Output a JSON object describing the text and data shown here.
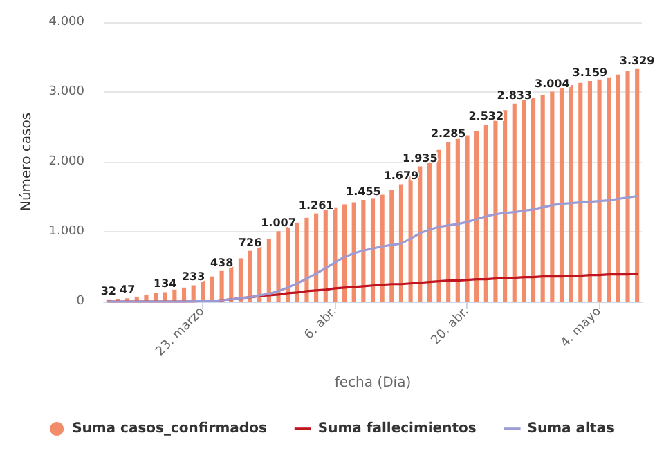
{
  "chart_data": {
    "type": "bar",
    "xlabel": "fecha (Día)",
    "ylabel": "Número casos",
    "categories": [
      null,
      null,
      null,
      null,
      null,
      null,
      null,
      null,
      null,
      null,
      "23. marzo",
      null,
      null,
      null,
      null,
      null,
      null,
      null,
      null,
      null,
      null,
      null,
      null,
      null,
      "6. abr.",
      null,
      null,
      null,
      null,
      null,
      null,
      null,
      null,
      null,
      null,
      null,
      null,
      null,
      "20. abr.",
      null,
      null,
      null,
      null,
      null,
      null,
      null,
      null,
      null,
      null,
      null,
      null,
      null,
      "4. mayo",
      null,
      null,
      null,
      null
    ],
    "series": [
      {
        "name": "Suma casos_confirmados",
        "color": "#f28c6a",
        "values": [
          32,
          40,
          47,
          70,
          100,
          120,
          134,
          170,
          200,
          233,
          300,
          360,
          438,
          530,
          620,
          726,
          820,
          900,
          1007,
          1070,
          1130,
          1200,
          1261,
          1310,
          1350,
          1390,
          1420,
          1455,
          1480,
          1530,
          1600,
          1679,
          1790,
          1935,
          2060,
          2170,
          2285,
          2330,
          2380,
          2440,
          2532,
          2640,
          2740,
          2833,
          2880,
          2920,
          2960,
          3004,
          3060,
          3100,
          3130,
          3159,
          3180,
          3200,
          3250,
          3300,
          3329
        ],
        "value_labels": [
          "32",
          null,
          "47",
          null,
          null,
          null,
          "134",
          null,
          null,
          "233",
          null,
          null,
          "438",
          null,
          null,
          "726",
          null,
          null,
          "1.007",
          null,
          null,
          null,
          "1.261",
          null,
          null,
          null,
          null,
          "1.455",
          null,
          null,
          null,
          "1.679",
          null,
          "1.935",
          null,
          null,
          "2.285",
          null,
          null,
          null,
          "2.532",
          null,
          null,
          "2.833",
          null,
          null,
          null,
          "3.004",
          null,
          null,
          null,
          "3.159",
          null,
          null,
          null,
          null,
          "3.329"
        ]
      },
      {
        "name": "Suma fallecimientos",
        "type": "line",
        "color": "#c0141e",
        "values": [
          0,
          0,
          0,
          0,
          0,
          0,
          0,
          0,
          0,
          0,
          10,
          10,
          20,
          30,
          50,
          60,
          80,
          90,
          100,
          120,
          130,
          150,
          160,
          170,
          190,
          200,
          210,
          220,
          230,
          240,
          250,
          250,
          260,
          270,
          280,
          290,
          300,
          300,
          310,
          320,
          320,
          330,
          340,
          340,
          350,
          350,
          360,
          360,
          360,
          370,
          370,
          380,
          380,
          390,
          390,
          390,
          400
        ]
      },
      {
        "name": "Suma altas",
        "type": "line",
        "color": "#9d9bd3",
        "values": [
          0,
          0,
          0,
          0,
          0,
          0,
          0,
          0,
          0,
          10,
          10,
          10,
          20,
          30,
          50,
          60,
          90,
          110,
          150,
          200,
          260,
          330,
          400,
          480,
          560,
          640,
          690,
          730,
          760,
          790,
          810,
          830,
          900,
          980,
          1030,
          1070,
          1090,
          1110,
          1140,
          1180,
          1220,
          1250,
          1270,
          1280,
          1300,
          1320,
          1350,
          1380,
          1400,
          1410,
          1420,
          1430,
          1440,
          1450,
          1470,
          1490,
          1510
        ]
      }
    ],
    "ylim": [
      0,
      4000
    ],
    "yticks": [
      {
        "value": 0,
        "label": "0"
      },
      {
        "value": 1000,
        "label": "1.000"
      },
      {
        "value": 2000,
        "label": "2.000"
      },
      {
        "value": 3000,
        "label": "3.000"
      },
      {
        "value": 4000,
        "label": "4.000"
      }
    ],
    "grid": "y",
    "legend": "bottom",
    "marker": "none",
    "line_style": "solid"
  }
}
